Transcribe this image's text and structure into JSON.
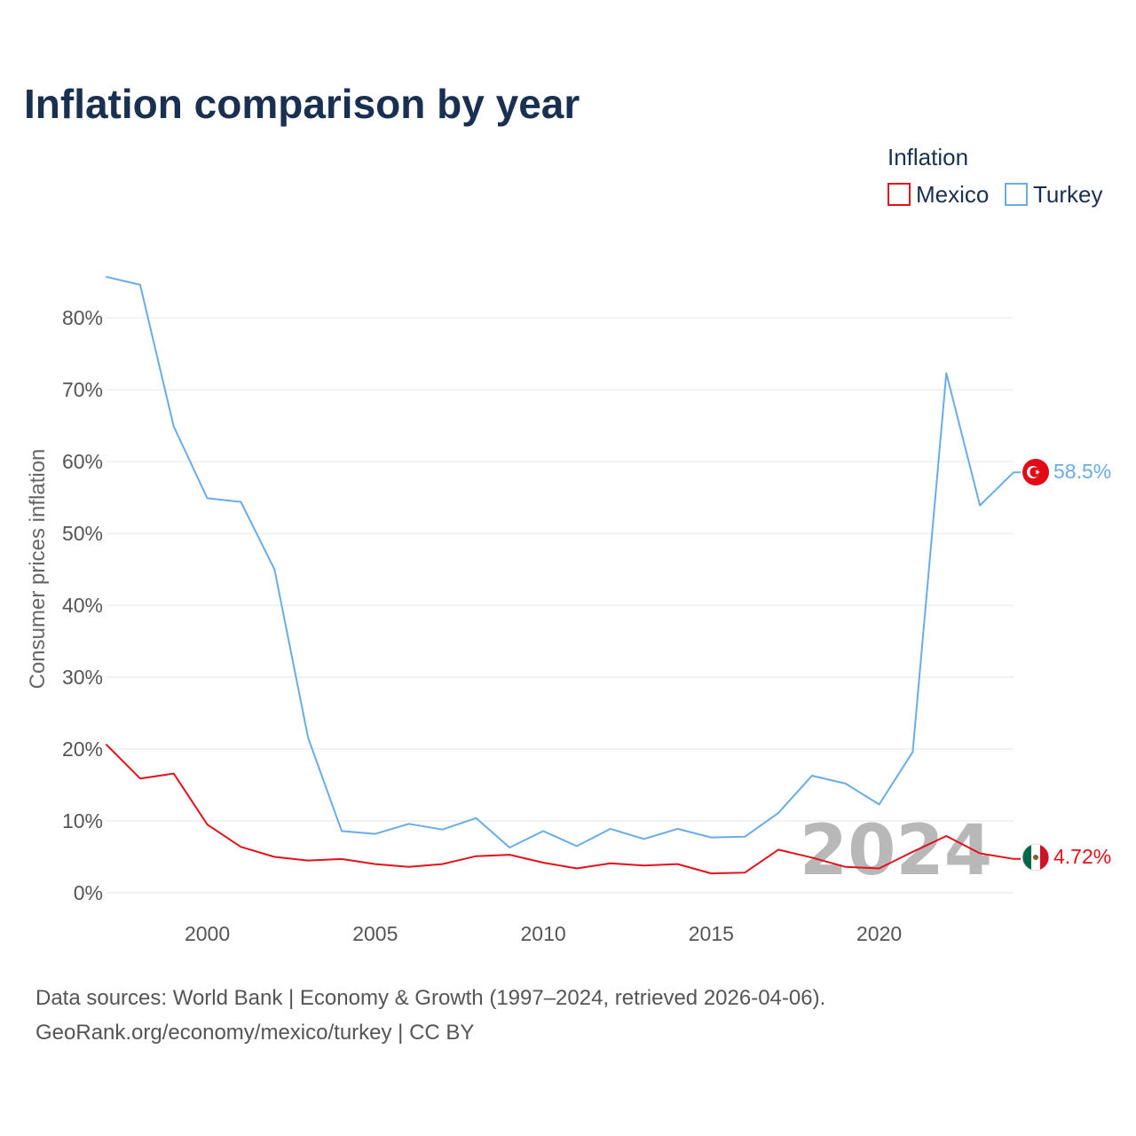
{
  "title": "Inflation comparison by year",
  "legend": {
    "title": "Inflation",
    "items": [
      {
        "name": "Mexico",
        "color": "#e3111b"
      },
      {
        "name": "Turkey",
        "color": "#6aace6"
      }
    ]
  },
  "chart_data": {
    "type": "line",
    "title": "Inflation comparison by year",
    "xlabel": "",
    "ylabel": "Consumer prices inflation",
    "x": [
      1997,
      1998,
      1999,
      2000,
      2001,
      2002,
      2003,
      2004,
      2005,
      2006,
      2007,
      2008,
      2009,
      2010,
      2011,
      2012,
      2013,
      2014,
      2015,
      2016,
      2017,
      2018,
      2019,
      2020,
      2021,
      2022,
      2023,
      2024
    ],
    "xlim": [
      1997,
      2024
    ],
    "ylim": [
      0,
      85.7
    ],
    "x_ticks": [
      2000,
      2005,
      2010,
      2015,
      2020
    ],
    "y_ticks": [
      0,
      10,
      20,
      30,
      40,
      50,
      60,
      70,
      80
    ],
    "y_tick_labels": [
      "0%",
      "10%",
      "20%",
      "30%",
      "40%",
      "50%",
      "60%",
      "70%",
      "80%"
    ],
    "x_tick_labels": [
      "2000",
      "2005",
      "2010",
      "2015",
      "2020"
    ],
    "grid": true,
    "legend_position": "top-right",
    "series": [
      {
        "name": "Mexico",
        "color": "#e3111b",
        "values": [
          20.6,
          15.9,
          16.6,
          9.5,
          6.4,
          5.0,
          4.5,
          4.7,
          4.0,
          3.6,
          4.0,
          5.1,
          5.3,
          4.2,
          3.4,
          4.1,
          3.8,
          4.0,
          2.7,
          2.8,
          6.0,
          4.9,
          3.6,
          3.4,
          5.7,
          7.9,
          5.5,
          4.72
        ],
        "end_label": "4.72%"
      },
      {
        "name": "Turkey",
        "color": "#6aace6",
        "values": [
          85.7,
          84.6,
          64.9,
          54.9,
          54.4,
          45.0,
          21.6,
          8.6,
          8.2,
          9.6,
          8.8,
          10.4,
          6.3,
          8.6,
          6.5,
          8.9,
          7.5,
          8.9,
          7.7,
          7.8,
          11.1,
          16.3,
          15.2,
          12.3,
          19.6,
          72.3,
          53.9,
          58.5
        ],
        "end_label": "58.5%"
      }
    ],
    "annotation": "2024"
  },
  "footer": {
    "line1": "Data sources: World Bank | Economy & Growth (1997–2024, retrieved 2026-04-06).",
    "line2": "GeoRank.org/economy/mexico/turkey | CC BY"
  }
}
